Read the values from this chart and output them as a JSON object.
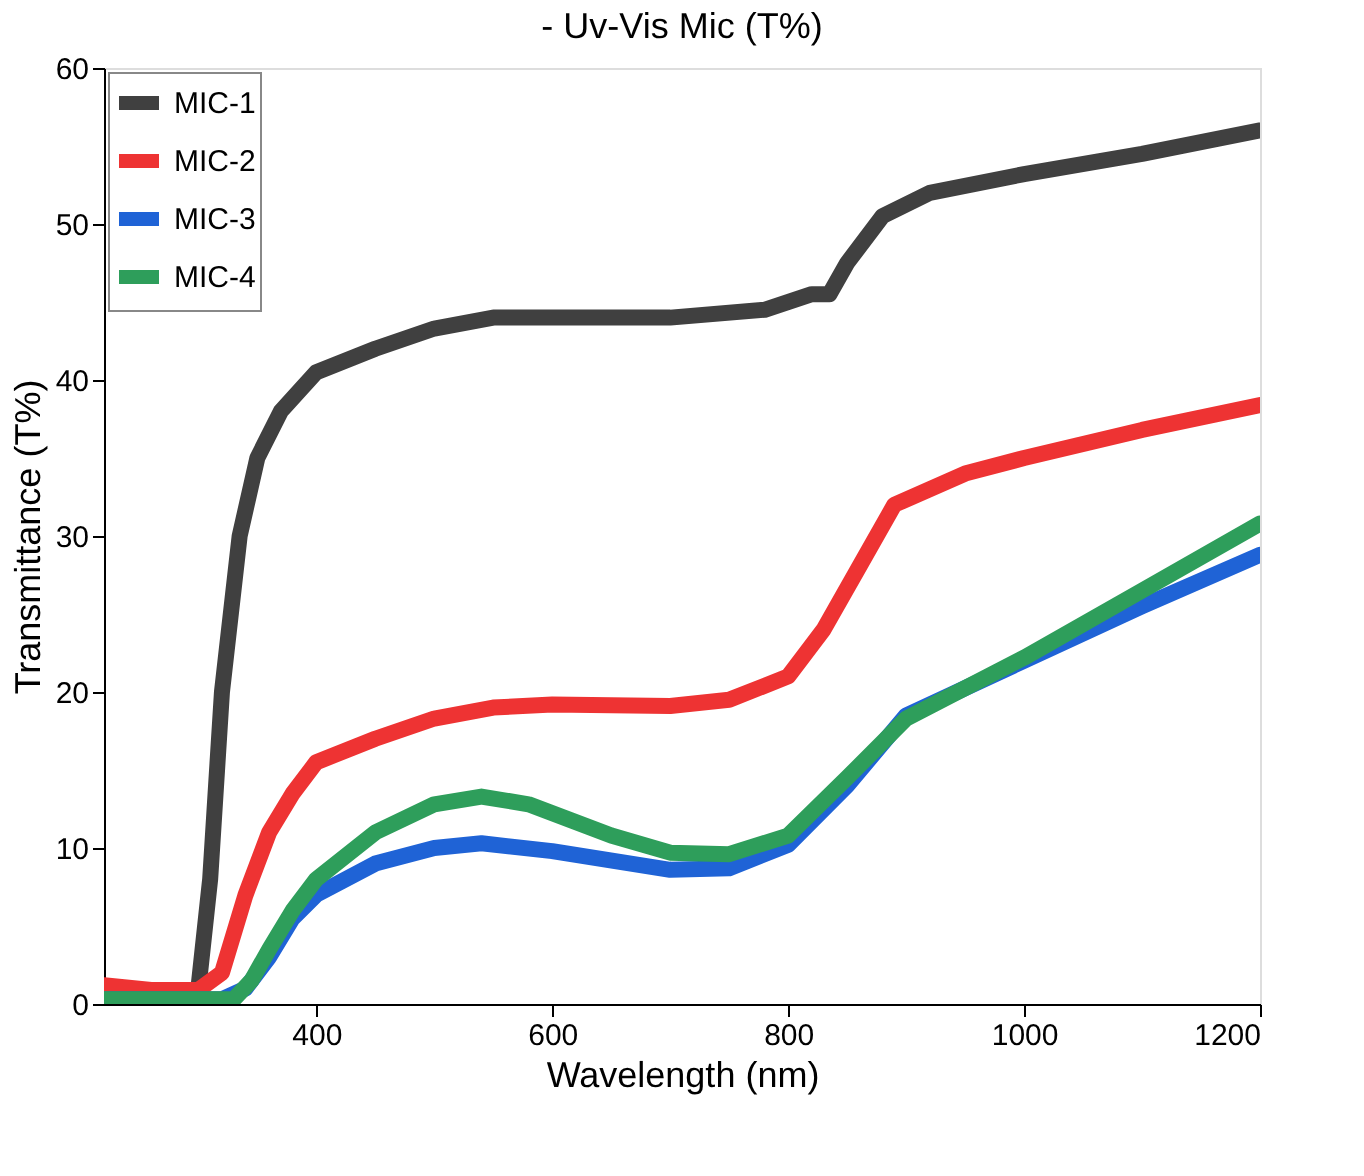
{
  "chart_data": {
    "type": "line",
    "title": "- Uv-Vis Mic (T%)",
    "xlabel": "Wavelength (nm)",
    "ylabel": "Transmittance  (T%)",
    "xlim": [
      220,
      1200
    ],
    "xticks": [
      400,
      600,
      800,
      1000,
      1200
    ],
    "ylim": [
      0,
      60
    ],
    "yticks": [
      0,
      10,
      20,
      30,
      40,
      50,
      60
    ],
    "grid": false,
    "legend": "top left",
    "marker": "none",
    "line_style": "solid",
    "series": [
      {
        "name": "MIC-1",
        "color": "#404040",
        "x": [
          220,
          260,
          290,
          300,
          310,
          320,
          335,
          350,
          370,
          400,
          450,
          500,
          550,
          600,
          700,
          780,
          820,
          835,
          850,
          880,
          920,
          1000,
          1100,
          1200
        ],
        "values": [
          0.8,
          0.9,
          0.8,
          1,
          8,
          20,
          30,
          35,
          38,
          40.5,
          42,
          43.3,
          44,
          44,
          44,
          44.5,
          45.5,
          45.5,
          47.5,
          50.5,
          52,
          53.2,
          54.5,
          56
        ]
      },
      {
        "name": "MIC-2",
        "color": "#ee3333",
        "x": [
          220,
          260,
          300,
          320,
          340,
          360,
          380,
          400,
          450,
          500,
          550,
          600,
          700,
          750,
          800,
          830,
          860,
          890,
          950,
          1000,
          1100,
          1200
        ],
        "values": [
          1.2,
          0.9,
          0.9,
          2,
          7,
          11,
          13.5,
          15.5,
          17,
          18.3,
          19,
          19.2,
          19.1,
          19.5,
          21,
          24,
          28,
          32,
          34,
          35,
          36.8,
          38.4
        ]
      },
      {
        "name": "MIC-3",
        "color": "#1f63d6",
        "x": [
          220,
          320,
          340,
          360,
          380,
          400,
          450,
          500,
          540,
          600,
          700,
          750,
          800,
          850,
          900,
          1000,
          1100,
          1200
        ],
        "values": [
          0.3,
          0.3,
          1,
          3,
          5.5,
          7,
          9,
          10,
          10.3,
          9.8,
          8.6,
          8.7,
          10.2,
          14,
          18.5,
          22,
          25.5,
          28.8
        ]
      },
      {
        "name": "MIC-4",
        "color": "#2e9e5b",
        "x": [
          220,
          330,
          345,
          360,
          380,
          400,
          450,
          500,
          540,
          580,
          650,
          700,
          750,
          800,
          850,
          900,
          1000,
          1100,
          1200
        ],
        "values": [
          0.3,
          0.3,
          1.5,
          3.5,
          6,
          8,
          11,
          12.8,
          13.3,
          12.8,
          10.8,
          9.7,
          9.6,
          10.8,
          14.5,
          18.3,
          22.2,
          26.5,
          30.8
        ]
      }
    ]
  }
}
